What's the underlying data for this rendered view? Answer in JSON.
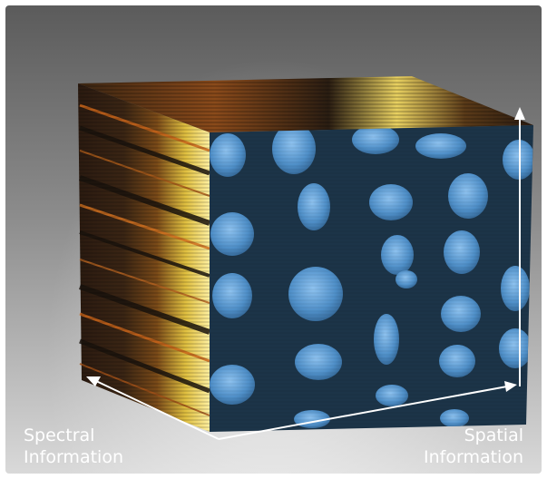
{
  "labels": {
    "spectral_line1": "Spectral",
    "spectral_line2": "Information",
    "spatial_line1": "Spatial",
    "spatial_line2": "Information"
  },
  "colors": {
    "front_face": "#1c3448",
    "particle": "#4f8fc8",
    "side_dark": "#1a130d",
    "side_orange": "#c8641a",
    "side_yellow": "#f0d040",
    "arrow": "#ffffff"
  }
}
